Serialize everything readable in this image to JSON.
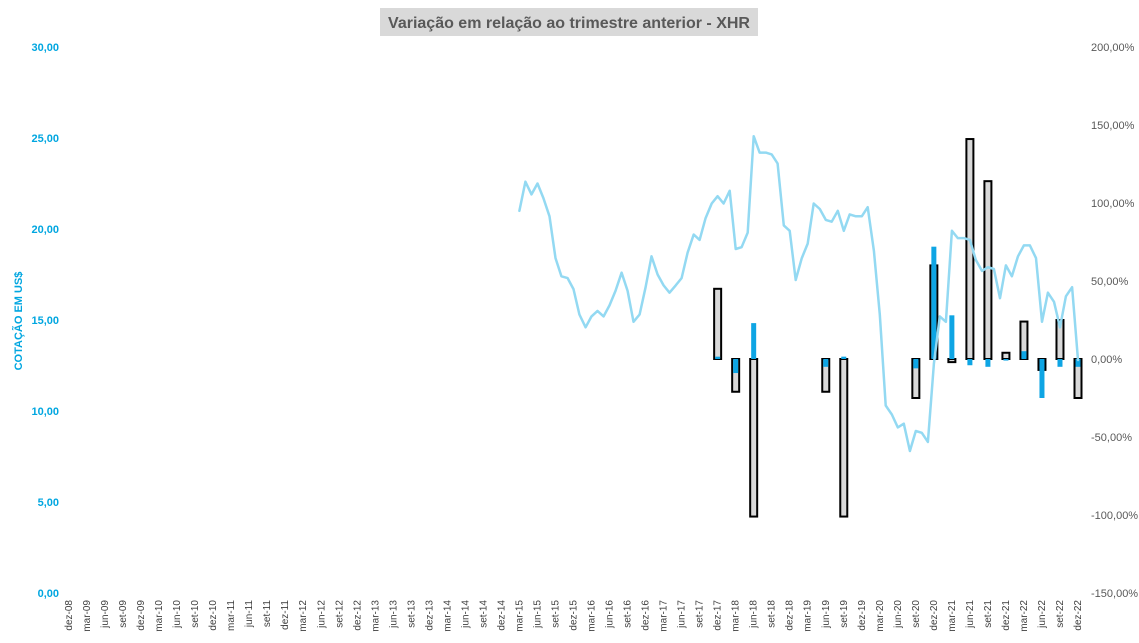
{
  "chart_data": {
    "type": "bar+line",
    "title": "Variação em relação ao trimestre anterior - XHR",
    "ylabel_left": "COTAÇÃO EM US$",
    "yleft_range": [
      0,
      30
    ],
    "yleft_ticks": [
      "0,00",
      "5,00",
      "10,00",
      "15,00",
      "20,00",
      "25,00",
      "30,00"
    ],
    "yright_range": [
      -150,
      200
    ],
    "yright_ticks": [
      "-150,00%",
      "-100,00%",
      "-50,00%",
      "0,00%",
      "50,00%",
      "100,00%",
      "150,00%",
      "200,00%"
    ],
    "x_labels": [
      "dez-08",
      "mar-09",
      "jun-09",
      "set-09",
      "dez-09",
      "mar-10",
      "jun-10",
      "set-10",
      "dez-10",
      "mar-11",
      "jun-11",
      "set-11",
      "dez-11",
      "mar-12",
      "jun-12",
      "set-12",
      "dez-12",
      "mar-13",
      "jun-13",
      "set-13",
      "dez-13",
      "mar-14",
      "jun-14",
      "set-14",
      "dez-14",
      "mar-15",
      "jun-15",
      "set-15",
      "dez-15",
      "mar-16",
      "jun-16",
      "set-16",
      "dez-16",
      "mar-17",
      "jun-17",
      "set-17",
      "dez-17",
      "mar-18",
      "jun-18",
      "set-18",
      "dez-18",
      "mar-19",
      "jun-19",
      "set-19",
      "dez-19",
      "mar-20",
      "jun-20",
      "set-20",
      "dez-20",
      "mar-21",
      "jun-21",
      "set-21",
      "dez-21",
      "mar-22",
      "jun-22",
      "set-22",
      "dez-22"
    ],
    "grid": false,
    "colors": {
      "line": "#93d9f2",
      "blue_bar": "#0ea5e4",
      "gray_bar": "#d9d9d9",
      "bar_outline": "#000000",
      "axis_text": "#00a6e0",
      "title_bg": "#d9d9d9"
    },
    "price_series": [
      {
        "x": 25.0,
        "y": 21.0
      },
      {
        "x": 25.33,
        "y": 22.6
      },
      {
        "x": 25.67,
        "y": 21.9
      },
      {
        "x": 26.0,
        "y": 22.5
      },
      {
        "x": 26.33,
        "y": 21.7
      },
      {
        "x": 26.67,
        "y": 20.7
      },
      {
        "x": 27.0,
        "y": 18.4
      },
      {
        "x": 27.33,
        "y": 17.4
      },
      {
        "x": 27.67,
        "y": 17.3
      },
      {
        "x": 28.0,
        "y": 16.7
      },
      {
        "x": 28.33,
        "y": 15.3
      },
      {
        "x": 28.67,
        "y": 14.6
      },
      {
        "x": 29.0,
        "y": 15.2
      },
      {
        "x": 29.33,
        "y": 15.5
      },
      {
        "x": 29.67,
        "y": 15.2
      },
      {
        "x": 30.0,
        "y": 15.8
      },
      {
        "x": 30.33,
        "y": 16.6
      },
      {
        "x": 30.67,
        "y": 17.6
      },
      {
        "x": 31.0,
        "y": 16.6
      },
      {
        "x": 31.33,
        "y": 14.9
      },
      {
        "x": 31.67,
        "y": 15.3
      },
      {
        "x": 32.0,
        "y": 16.8
      },
      {
        "x": 32.33,
        "y": 18.5
      },
      {
        "x": 32.67,
        "y": 17.5
      },
      {
        "x": 33.0,
        "y": 16.9
      },
      {
        "x": 33.33,
        "y": 16.5
      },
      {
        "x": 33.67,
        "y": 16.9
      },
      {
        "x": 34.0,
        "y": 17.3
      },
      {
        "x": 34.33,
        "y": 18.7
      },
      {
        "x": 34.67,
        "y": 19.7
      },
      {
        "x": 35.0,
        "y": 19.4
      },
      {
        "x": 35.33,
        "y": 20.6
      },
      {
        "x": 35.67,
        "y": 21.4
      },
      {
        "x": 36.0,
        "y": 21.8
      },
      {
        "x": 36.33,
        "y": 21.4
      },
      {
        "x": 36.67,
        "y": 22.1
      },
      {
        "x": 37.0,
        "y": 18.9
      },
      {
        "x": 37.33,
        "y": 19.0
      },
      {
        "x": 37.67,
        "y": 19.8
      },
      {
        "x": 38.0,
        "y": 25.1
      },
      {
        "x": 38.33,
        "y": 24.2
      },
      {
        "x": 38.67,
        "y": 24.2
      },
      {
        "x": 39.0,
        "y": 24.1
      },
      {
        "x": 39.33,
        "y": 23.6
      },
      {
        "x": 39.67,
        "y": 20.2
      },
      {
        "x": 40.0,
        "y": 19.9
      },
      {
        "x": 40.33,
        "y": 17.2
      },
      {
        "x": 40.67,
        "y": 18.4
      },
      {
        "x": 41.0,
        "y": 19.2
      },
      {
        "x": 41.33,
        "y": 21.4
      },
      {
        "x": 41.67,
        "y": 21.1
      },
      {
        "x": 42.0,
        "y": 20.5
      },
      {
        "x": 42.33,
        "y": 20.4
      },
      {
        "x": 42.67,
        "y": 21.0
      },
      {
        "x": 43.0,
        "y": 19.9
      },
      {
        "x": 43.33,
        "y": 20.8
      },
      {
        "x": 43.67,
        "y": 20.7
      },
      {
        "x": 44.0,
        "y": 20.7
      },
      {
        "x": 44.33,
        "y": 21.2
      },
      {
        "x": 44.67,
        "y": 18.8
      },
      {
        "x": 45.0,
        "y": 15.3
      },
      {
        "x": 45.33,
        "y": 10.3
      },
      {
        "x": 45.67,
        "y": 9.8
      },
      {
        "x": 46.0,
        "y": 9.1
      },
      {
        "x": 46.33,
        "y": 9.3
      },
      {
        "x": 46.67,
        "y": 7.8
      },
      {
        "x": 47.0,
        "y": 8.9
      },
      {
        "x": 47.33,
        "y": 8.8
      },
      {
        "x": 47.67,
        "y": 8.3
      },
      {
        "x": 48.0,
        "y": 12.6
      },
      {
        "x": 48.33,
        "y": 15.2
      },
      {
        "x": 48.67,
        "y": 14.9
      },
      {
        "x": 49.0,
        "y": 19.9
      },
      {
        "x": 49.33,
        "y": 19.5
      },
      {
        "x": 49.67,
        "y": 19.5
      },
      {
        "x": 50.0,
        "y": 19.4
      },
      {
        "x": 50.33,
        "y": 18.3
      },
      {
        "x": 50.67,
        "y": 17.7
      },
      {
        "x": 51.0,
        "y": 17.9
      },
      {
        "x": 51.33,
        "y": 17.8
      },
      {
        "x": 51.67,
        "y": 16.2
      },
      {
        "x": 52.0,
        "y": 18.0
      },
      {
        "x": 52.33,
        "y": 17.4
      },
      {
        "x": 52.67,
        "y": 18.5
      },
      {
        "x": 53.0,
        "y": 19.1
      },
      {
        "x": 53.33,
        "y": 19.1
      },
      {
        "x": 53.67,
        "y": 18.4
      },
      {
        "x": 54.0,
        "y": 14.9
      },
      {
        "x": 54.33,
        "y": 16.5
      },
      {
        "x": 54.67,
        "y": 16.0
      },
      {
        "x": 55.0,
        "y": 14.6
      },
      {
        "x": 55.33,
        "y": 16.3
      },
      {
        "x": 55.67,
        "y": 16.8
      },
      {
        "x": 56.0,
        "y": 12.8
      }
    ],
    "bars": [
      {
        "x": "dez-17",
        "blue": 1.5,
        "gray": 45
      },
      {
        "x": "mar-18",
        "blue": -9,
        "gray": -21
      },
      {
        "x": "jun-18",
        "blue": 23,
        "gray": -101
      },
      {
        "x": "jun-19",
        "blue": -5,
        "gray": -21
      },
      {
        "x": "set-19",
        "blue": 1.5,
        "gray": -101
      },
      {
        "x": "set-20",
        "blue": -6,
        "gray": -25
      },
      {
        "x": "dez-20",
        "blue": 72,
        "gray": 60
      },
      {
        "x": "mar-21",
        "blue": 28,
        "gray": -2
      },
      {
        "x": "jun-21",
        "blue": -4,
        "gray": 141
      },
      {
        "x": "set-21",
        "blue": -5,
        "gray": 114
      },
      {
        "x": "dez-21",
        "blue": -1,
        "gray": 4
      },
      {
        "x": "mar-22",
        "blue": 5,
        "gray": 24
      },
      {
        "x": "jun-22",
        "blue": -25,
        "gray": -7
      },
      {
        "x": "set-22",
        "blue": -5,
        "gray": 25
      },
      {
        "x": "dez-22",
        "blue": -5,
        "gray": -25
      }
    ]
  }
}
